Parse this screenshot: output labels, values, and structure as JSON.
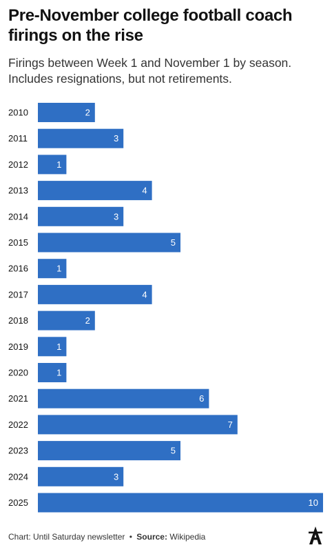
{
  "title": "Pre-November college football coach firings on the rise",
  "subtitle": "Firings between Week 1 and November 1 by season. Includes resignations, but not retirements.",
  "chart_data": {
    "type": "bar",
    "orientation": "horizontal",
    "categories": [
      "2010",
      "2011",
      "2012",
      "2013",
      "2014",
      "2015",
      "2016",
      "2017",
      "2018",
      "2019",
      "2020",
      "2021",
      "2022",
      "2023",
      "2024",
      "2025"
    ],
    "values": [
      2,
      3,
      1,
      4,
      3,
      5,
      1,
      4,
      2,
      1,
      1,
      6,
      7,
      5,
      3,
      10
    ],
    "xlim": [
      0,
      10
    ],
    "grid": false,
    "bar_color": "#2F6FC4",
    "label_color": "#ffffff"
  },
  "footer": {
    "chart_label": "Chart: Until Saturday newsletter",
    "bullet": "•",
    "source_label": "Source:",
    "source_value": "Wikipedia"
  },
  "logo": {
    "icon": "the-athletic-logo-icon"
  }
}
